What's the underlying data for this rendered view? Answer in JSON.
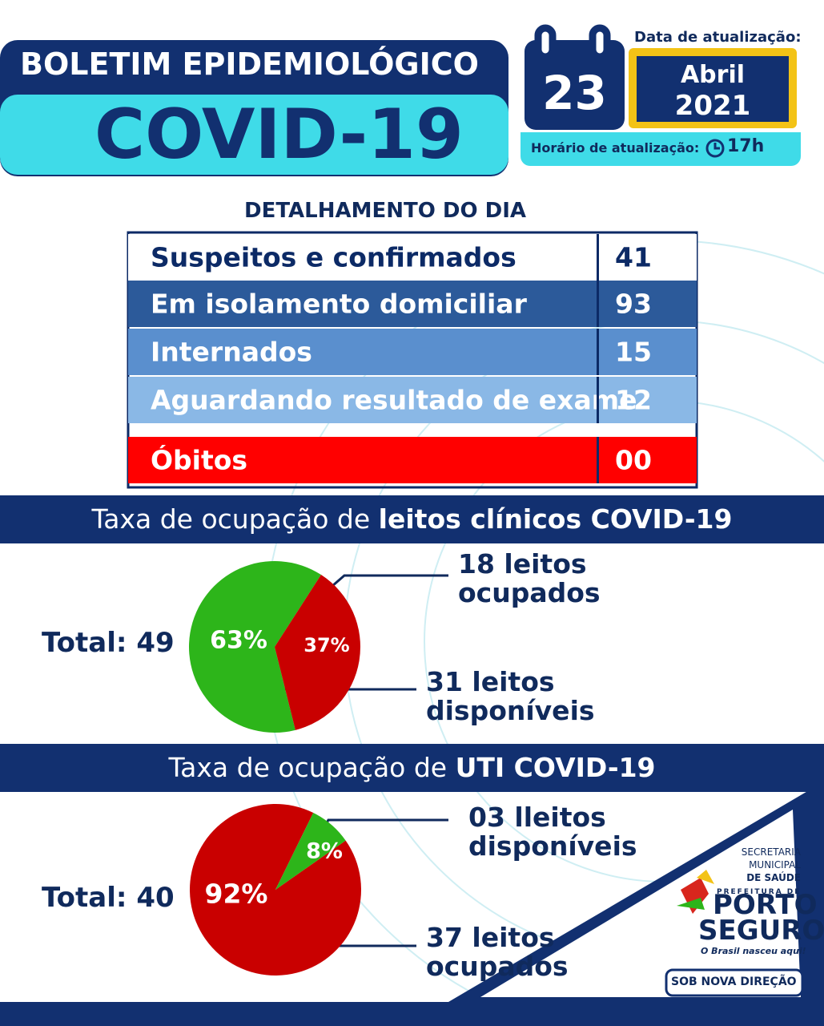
{
  "header": {
    "title_line1": "BOLETIM EPIDEMIOLÓGICO",
    "title_line2": "COVID-19",
    "date_label": "Data de atualização:",
    "day": "23",
    "month": "Abril",
    "year": "2021",
    "time_label": "Horário de atualização:",
    "time": "17h"
  },
  "daily": {
    "title": "DETALHAMENTO DO DIA",
    "rows": [
      [
        "Suspeitos e confirmados",
        "41"
      ],
      [
        "Em isolamento domiciliar",
        "93"
      ],
      [
        "Internados",
        "15"
      ],
      [
        "Aguardando resultado de exame",
        "12"
      ],
      [
        "Óbitos",
        "00"
      ]
    ]
  },
  "clinical": {
    "type": "pie",
    "title_normal": "Taxa de ocupação de",
    "title_bold": "leitos clínicos COVID-19",
    "total": "Total: 49",
    "categories": [
      "31 leitos disponíveis",
      "18 leitos ocupados"
    ],
    "values": [
      63,
      37
    ],
    "value_labels": [
      "63%",
      "37%"
    ],
    "colors": [
      "#2db51a",
      "#c90000"
    ]
  },
  "icu": {
    "type": "pie",
    "title_normal": "Taxa de ocupação de",
    "title_bold": "UTI COVID-19",
    "total": "Total: 40",
    "categories": [
      "37 leitos ocupados",
      "03 lleitos disponíveis"
    ],
    "values": [
      92,
      8
    ],
    "value_labels": [
      "92%",
      "8%"
    ],
    "colors": [
      "#c90000",
      "#2db51a"
    ]
  },
  "logo": {
    "secretaria": [
      "SECRETARIA",
      "MUNICIPAL",
      "DE SAÚDE"
    ],
    "prefeitura": "PREFEITURA DE",
    "city1": "PORTO",
    "city2": "SEGURO",
    "slogan": "O Brasil nasceu aqui!",
    "badge1": "SOB NOVA",
    "badge2": "DIREÇÃO"
  }
}
